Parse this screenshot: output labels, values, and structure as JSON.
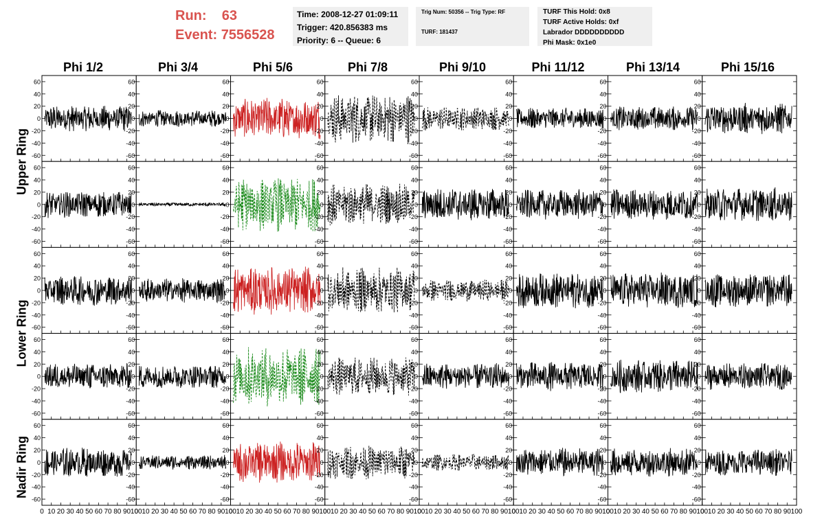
{
  "header": {
    "run_label": "Run:",
    "run_value": "63",
    "event_label": "Event:",
    "event_value": "7556528"
  },
  "info_time": {
    "time": "Time: 2008-12-27 01:09:11",
    "trigger": "Trigger: 420.856383 ms",
    "priority": "Priority: 6 -- Queue: 6"
  },
  "info_trig": {
    "trig": "Trig Num: 50356 -- Trig Type: RF",
    "turf": "TURF: 181437"
  },
  "info_turf": {
    "this_hold": "TURF This Hold: 0x8",
    "active_holds": "TURF Active Holds: 0xf",
    "labrador": "Labrador DDDDDDDDDD",
    "phi_mask": "Phi Mask: 0x1e0"
  },
  "columns": [
    "Phi 1/2",
    "Phi 3/4",
    "Phi 5/6",
    "Phi 7/8",
    "Phi 9/10",
    "Phi 11/12",
    "Phi 13/14",
    "Phi 15/16"
  ],
  "ring_labels": {
    "upper": "Upper Ring",
    "lower": "Lower Ring",
    "nadir": "Nadir Ring"
  },
  "colors": {
    "run_event": "#d9534f",
    "trace_default": "#000000",
    "trace_red": "#cc2222",
    "trace_green": "#1a8a1a"
  },
  "chart_data": {
    "type": "line",
    "ylim": [
      -70,
      70
    ],
    "xlim": [
      0,
      100
    ],
    "y_ticks": [
      -60,
      -40,
      -20,
      0,
      20,
      40,
      60
    ],
    "x_ticks": [
      0,
      10,
      20,
      30,
      40,
      50,
      60,
      70,
      80,
      90,
      100
    ],
    "x_tick_labels": [
      "0",
      "10",
      "20",
      "30",
      "40",
      "50",
      "60",
      "70",
      "80",
      "90",
      "100"
    ],
    "grid": false,
    "rows": [
      {
        "traces": [
          {
            "style": "solid",
            "color": "black",
            "amplitude": 22
          },
          {
            "style": "solid",
            "color": "black",
            "amplitude": 14
          },
          {
            "style": "solid",
            "color": "red",
            "amplitude": 35
          },
          {
            "style": "dashed",
            "color": "black",
            "amplitude": 42
          },
          {
            "style": "dashed",
            "color": "black",
            "amplitude": 20
          },
          {
            "style": "solid",
            "color": "black",
            "amplitude": 18
          },
          {
            "style": "solid",
            "color": "black",
            "amplitude": 20
          },
          {
            "style": "solid",
            "color": "black",
            "amplitude": 26
          }
        ]
      },
      {
        "traces": [
          {
            "style": "solid",
            "color": "black",
            "amplitude": 22
          },
          {
            "style": "solid",
            "color": "black",
            "amplitude": 3
          },
          {
            "style": "dashed",
            "color": "green",
            "amplitude": 45
          },
          {
            "style": "dashed",
            "color": "black",
            "amplitude": 35
          },
          {
            "style": "solid",
            "color": "black",
            "amplitude": 28
          },
          {
            "style": "solid",
            "color": "black",
            "amplitude": 25
          },
          {
            "style": "solid",
            "color": "black",
            "amplitude": 26
          },
          {
            "style": "solid",
            "color": "black",
            "amplitude": 28
          }
        ]
      },
      {
        "traces": [
          {
            "style": "solid",
            "color": "black",
            "amplitude": 25
          },
          {
            "style": "solid",
            "color": "black",
            "amplitude": 20
          },
          {
            "style": "solid",
            "color": "red",
            "amplitude": 40
          },
          {
            "style": "dashed",
            "color": "black",
            "amplitude": 38
          },
          {
            "style": "dashed",
            "color": "black",
            "amplitude": 18
          },
          {
            "style": "solid",
            "color": "black",
            "amplitude": 30
          },
          {
            "style": "solid",
            "color": "black",
            "amplitude": 30
          },
          {
            "style": "solid",
            "color": "black",
            "amplitude": 28
          }
        ]
      },
      {
        "traces": [
          {
            "style": "solid",
            "color": "black",
            "amplitude": 22
          },
          {
            "style": "solid",
            "color": "black",
            "amplitude": 20
          },
          {
            "style": "dashed",
            "color": "green",
            "amplitude": 50
          },
          {
            "style": "dashed",
            "color": "black",
            "amplitude": 32
          },
          {
            "style": "solid",
            "color": "black",
            "amplitude": 22
          },
          {
            "style": "solid",
            "color": "black",
            "amplitude": 24
          },
          {
            "style": "solid",
            "color": "black",
            "amplitude": 28
          },
          {
            "style": "solid",
            "color": "black",
            "amplitude": 22
          }
        ]
      },
      {
        "traces": [
          {
            "style": "solid",
            "color": "black",
            "amplitude": 25
          },
          {
            "style": "solid",
            "color": "black",
            "amplitude": 12
          },
          {
            "style": "solid",
            "color": "red",
            "amplitude": 35
          },
          {
            "style": "dashed",
            "color": "black",
            "amplitude": 28
          },
          {
            "style": "dashed",
            "color": "black",
            "amplitude": 14
          },
          {
            "style": "solid",
            "color": "black",
            "amplitude": 24
          },
          {
            "style": "solid",
            "color": "black",
            "amplitude": 24
          },
          {
            "style": "solid",
            "color": "black",
            "amplitude": 22
          }
        ]
      }
    ]
  }
}
